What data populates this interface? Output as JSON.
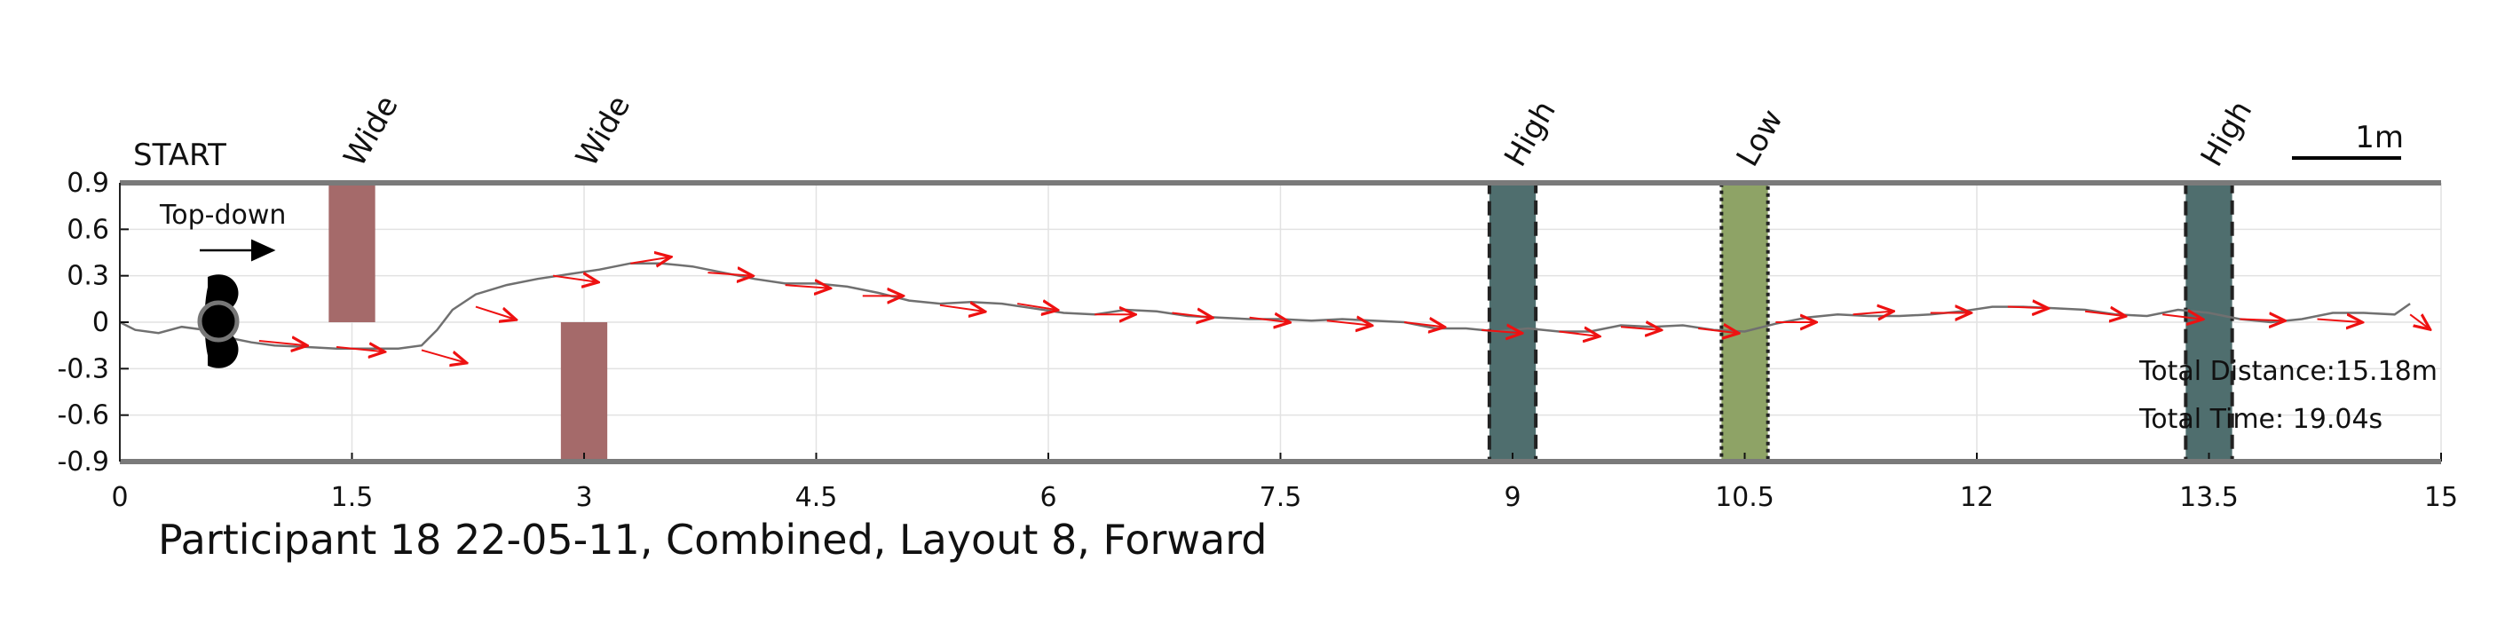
{
  "chart_data": {
    "type": "line",
    "title": "Participant 18 22-05-11, Combined, Layout 8, Forward",
    "start_label": "START",
    "orientation_label": "Top-down",
    "scale_label": "1m",
    "xlim": [
      0,
      15
    ],
    "ylim": [
      -0.9,
      0.9
    ],
    "x_ticks": [
      "0",
      "1.5",
      "3",
      "4.5",
      "6",
      "7.5",
      "9",
      "10.5",
      "12",
      "13.5",
      "15"
    ],
    "y_ticks": [
      "0.9",
      "0.6",
      "0.3",
      "0",
      "-0.3",
      "-0.6",
      "-0.9"
    ],
    "grid": true,
    "obstacles": [
      {
        "label": "Wide",
        "x": [
          1.35,
          1.65
        ],
        "y": [
          0,
          0.9
        ],
        "color": "#a56a6a"
      },
      {
        "label": "Wide",
        "x": [
          2.85,
          3.15
        ],
        "y": [
          -0.9,
          0
        ],
        "color": "#a56a6a"
      },
      {
        "label": "High",
        "x": [
          8.85,
          9.15
        ],
        "y": [
          -0.9,
          0.9
        ],
        "color": "#4f6e6e",
        "border": "dashed"
      },
      {
        "label": "Low",
        "x": [
          10.35,
          10.65
        ],
        "y": [
          -0.9,
          0.9
        ],
        "color": "#8ea366",
        "border": "dotted"
      },
      {
        "label": "High",
        "x": [
          13.35,
          13.65
        ],
        "y": [
          -0.9,
          0.9
        ],
        "color": "#4f6e6e",
        "border": "dashed"
      }
    ],
    "path": [
      [
        0,
        0
      ],
      [
        0.1,
        -0.05
      ],
      [
        0.25,
        -0.07
      ],
      [
        0.4,
        -0.03
      ],
      [
        0.55,
        -0.05
      ],
      [
        0.7,
        -0.1
      ],
      [
        0.85,
        -0.13
      ],
      [
        1.0,
        -0.15
      ],
      [
        1.2,
        -0.16
      ],
      [
        1.4,
        -0.17
      ],
      [
        1.6,
        -0.17
      ],
      [
        1.8,
        -0.17
      ],
      [
        1.95,
        -0.15
      ],
      [
        2.05,
        -0.05
      ],
      [
        2.15,
        0.08
      ],
      [
        2.3,
        0.18
      ],
      [
        2.5,
        0.24
      ],
      [
        2.7,
        0.28
      ],
      [
        2.9,
        0.31
      ],
      [
        3.1,
        0.34
      ],
      [
        3.3,
        0.38
      ],
      [
        3.5,
        0.38
      ],
      [
        3.7,
        0.36
      ],
      [
        3.9,
        0.32
      ],
      [
        4.1,
        0.28
      ],
      [
        4.3,
        0.25
      ],
      [
        4.5,
        0.25
      ],
      [
        4.7,
        0.23
      ],
      [
        4.9,
        0.19
      ],
      [
        5.1,
        0.14
      ],
      [
        5.3,
        0.12
      ],
      [
        5.5,
        0.13
      ],
      [
        5.7,
        0.12
      ],
      [
        5.9,
        0.09
      ],
      [
        6.1,
        0.06
      ],
      [
        6.3,
        0.05
      ],
      [
        6.5,
        0.08
      ],
      [
        6.7,
        0.07
      ],
      [
        6.9,
        0.04
      ],
      [
        7.1,
        0.03
      ],
      [
        7.3,
        0.02
      ],
      [
        7.5,
        0.02
      ],
      [
        7.7,
        0.01
      ],
      [
        7.9,
        0.02
      ],
      [
        8.1,
        0.01
      ],
      [
        8.3,
        0.0
      ],
      [
        8.5,
        -0.04
      ],
      [
        8.7,
        -0.04
      ],
      [
        8.9,
        -0.06
      ],
      [
        9.1,
        -0.04
      ],
      [
        9.3,
        -0.06
      ],
      [
        9.5,
        -0.06
      ],
      [
        9.7,
        -0.02
      ],
      [
        9.9,
        -0.03
      ],
      [
        10.1,
        -0.02
      ],
      [
        10.3,
        -0.05
      ],
      [
        10.5,
        -0.06
      ],
      [
        10.7,
        -0.01
      ],
      [
        10.9,
        0.03
      ],
      [
        11.1,
        0.05
      ],
      [
        11.3,
        0.04
      ],
      [
        11.5,
        0.04
      ],
      [
        11.7,
        0.05
      ],
      [
        11.9,
        0.07
      ],
      [
        12.1,
        0.1
      ],
      [
        12.3,
        0.1
      ],
      [
        12.5,
        0.09
      ],
      [
        12.7,
        0.08
      ],
      [
        12.9,
        0.05
      ],
      [
        13.1,
        0.04
      ],
      [
        13.3,
        0.08
      ],
      [
        13.5,
        0.06
      ],
      [
        13.7,
        0.02
      ],
      [
        13.9,
        0.0
      ],
      [
        14.1,
        0.02
      ],
      [
        14.3,
        0.06
      ],
      [
        14.5,
        0.06
      ],
      [
        14.7,
        0.05
      ],
      [
        14.8,
        0.12
      ]
    ],
    "heading_arrows": [
      [
        0.9,
        -0.12,
        0.3,
        -0.03
      ],
      [
        1.4,
        -0.16,
        0.3,
        -0.03
      ],
      [
        1.95,
        -0.18,
        0.28,
        -0.08
      ],
      [
        2.3,
        0.1,
        0.25,
        -0.08
      ],
      [
        2.8,
        0.3,
        0.28,
        -0.04
      ],
      [
        3.3,
        0.38,
        0.25,
        0.04
      ],
      [
        3.8,
        0.32,
        0.28,
        -0.02
      ],
      [
        4.3,
        0.24,
        0.28,
        -0.02
      ],
      [
        4.8,
        0.17,
        0.25,
        0.0
      ],
      [
        5.3,
        0.11,
        0.28,
        -0.04
      ],
      [
        5.8,
        0.12,
        0.25,
        -0.04
      ],
      [
        6.3,
        0.05,
        0.25,
        0.0
      ],
      [
        6.8,
        0.06,
        0.25,
        -0.03
      ],
      [
        7.3,
        0.03,
        0.25,
        -0.03
      ],
      [
        7.8,
        0.01,
        0.28,
        -0.03
      ],
      [
        8.3,
        0.0,
        0.25,
        -0.03
      ],
      [
        8.8,
        -0.05,
        0.25,
        -0.02
      ],
      [
        9.3,
        -0.06,
        0.25,
        -0.03
      ],
      [
        9.7,
        -0.03,
        0.25,
        -0.02
      ],
      [
        10.2,
        -0.04,
        0.25,
        -0.03
      ],
      [
        10.7,
        0.0,
        0.25,
        0.0
      ],
      [
        11.2,
        0.05,
        0.25,
        0.02
      ],
      [
        11.7,
        0.06,
        0.25,
        0.0
      ],
      [
        12.2,
        0.1,
        0.25,
        -0.01
      ],
      [
        12.7,
        0.07,
        0.25,
        -0.03
      ],
      [
        13.2,
        0.05,
        0.25,
        -0.03
      ],
      [
        13.7,
        0.02,
        0.28,
        -0.01
      ],
      [
        14.2,
        0.02,
        0.28,
        -0.02
      ],
      [
        14.8,
        0.05,
        0.12,
        -0.09
      ]
    ],
    "annotations": [
      "Total Distance:15.18m",
      "Total Time: 19.04s"
    ]
  }
}
